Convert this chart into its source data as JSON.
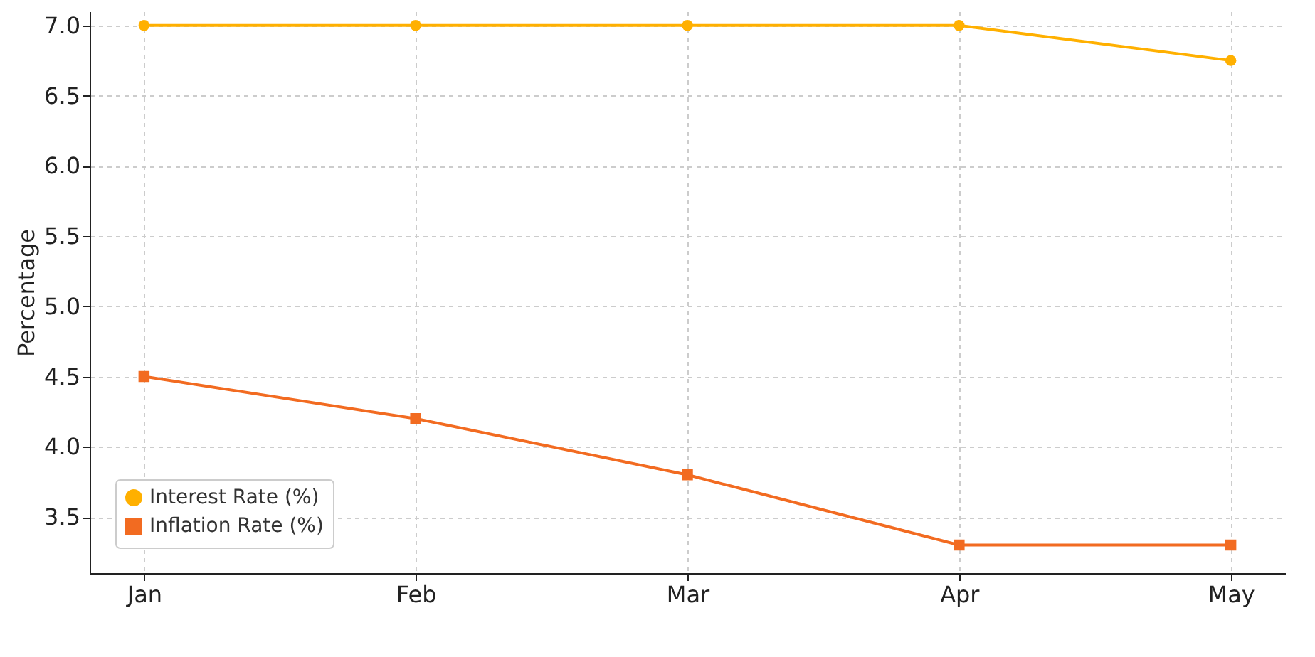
{
  "chart_data": {
    "type": "line",
    "ylabel": "Percentage",
    "categories": [
      "Jan",
      "Feb",
      "Mar",
      "Apr",
      "May"
    ],
    "series": [
      {
        "name": "Interest Rate (%)",
        "color": "#ffb000",
        "marker": "circle",
        "values": [
          7.0,
          7.0,
          7.0,
          7.0,
          6.75
        ]
      },
      {
        "name": "Inflation Rate (%)",
        "color": "#f26b21",
        "marker": "square",
        "values": [
          4.5,
          4.2,
          3.8,
          3.3,
          3.3
        ]
      }
    ],
    "ylim": [
      3.1,
      7.1
    ],
    "yticks": [
      3.5,
      {
        "value": 4,
        "label": "4.0"
      },
      4.5,
      {
        "value": 5,
        "label": "5.0"
      },
      5.5,
      {
        "value": 6,
        "label": "6.0"
      },
      6.5,
      {
        "value": 7,
        "label": "7.0"
      }
    ],
    "grid": true,
    "legend": "bottom left",
    "line_style": "solid"
  }
}
